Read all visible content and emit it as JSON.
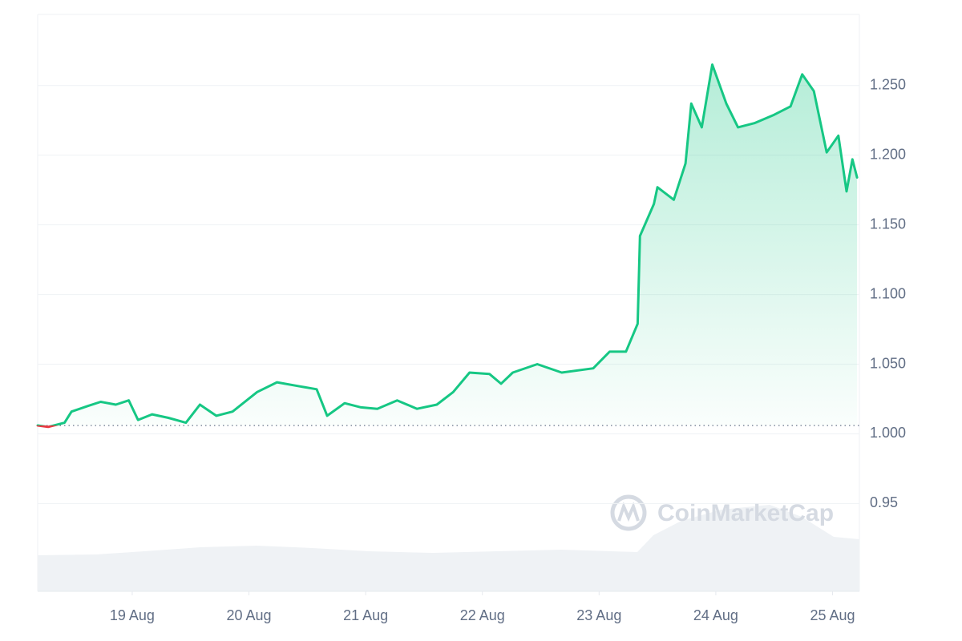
{
  "chart_data": {
    "type": "line",
    "watermark": "CoinMarketCap",
    "x": [
      18.19,
      18.28,
      18.42,
      18.48,
      18.62,
      18.73,
      18.86,
      18.97,
      19.05,
      19.17,
      19.31,
      19.46,
      19.58,
      19.72,
      19.86,
      20.07,
      20.24,
      20.44,
      20.58,
      20.67,
      20.82,
      20.96,
      21.1,
      21.27,
      21.44,
      21.61,
      21.75,
      21.89,
      22.06,
      22.16,
      22.26,
      22.47,
      22.68,
      22.95,
      23.09,
      23.23,
      23.33,
      23.35,
      23.47,
      23.5,
      23.64,
      23.74,
      23.79,
      23.88,
      23.97,
      24.09,
      24.19,
      24.33,
      24.5,
      24.64,
      24.74,
      24.84,
      24.95,
      25.05,
      25.12,
      25.17,
      25.21
    ],
    "series": [
      {
        "color": "#16c784",
        "down_color": "#ea3943",
        "values": [
          1.006,
          1.005,
          1.008,
          1.016,
          1.02,
          1.023,
          1.021,
          1.024,
          1.01,
          1.014,
          1.0115,
          1.008,
          1.021,
          1.013,
          1.016,
          1.03,
          1.037,
          1.034,
          1.032,
          1.013,
          1.022,
          1.019,
          1.018,
          1.024,
          1.018,
          1.021,
          1.03,
          1.044,
          1.043,
          1.036,
          1.044,
          1.05,
          1.044,
          1.047,
          1.059,
          1.059,
          1.079,
          1.142,
          1.165,
          1.177,
          1.168,
          1.194,
          1.237,
          1.22,
          1.265,
          1.237,
          1.22,
          1.223,
          1.229,
          1.235,
          1.258,
          1.246,
          1.202,
          1.214,
          1.174,
          1.197,
          1.184
        ]
      }
    ],
    "baseline": 1.006,
    "xlim": [
      18.19,
      25.23
    ],
    "xticks": [
      {
        "value": 19,
        "label": "19 Aug"
      },
      {
        "value": 20,
        "label": "20 Aug"
      },
      {
        "value": 21,
        "label": "21 Aug"
      },
      {
        "value": 22,
        "label": "22 Aug"
      },
      {
        "value": 23,
        "label": "23 Aug"
      },
      {
        "value": 24,
        "label": "24 Aug"
      },
      {
        "value": 25,
        "label": "25 Aug"
      }
    ],
    "ylim": [
      0.887,
      1.301
    ],
    "yticks": [
      0.95,
      {
        "value": 1.0,
        "label": "1.000"
      },
      {
        "value": 1.05,
        "label": "1.050"
      },
      {
        "value": 1.1,
        "label": "1.100"
      },
      {
        "value": 1.15,
        "label": "1.150"
      },
      {
        "value": 1.2,
        "label": "1.200"
      },
      {
        "value": 1.25,
        "label": "1.250"
      }
    ],
    "grid": true
  }
}
